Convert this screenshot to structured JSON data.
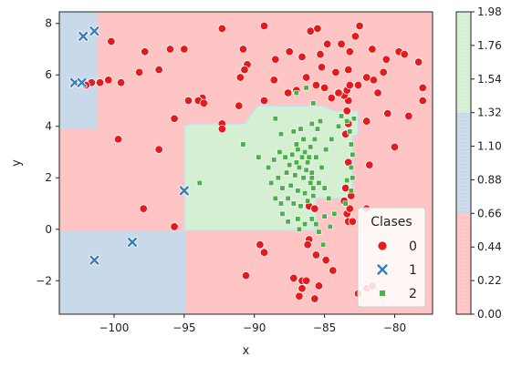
{
  "chart_data": {
    "type": "scatter",
    "title": "",
    "xlabel": "x",
    "ylabel": "y",
    "xlim": [
      -103.9,
      -77.3
    ],
    "ylim": [
      -3.3,
      8.45
    ],
    "xticks": [
      -100,
      -95,
      -90,
      -85,
      -80
    ],
    "yticks": [
      -2,
      0,
      2,
      4,
      6,
      8
    ],
    "tick_labels_x": [
      "−100",
      "−95",
      "−90",
      "−85",
      "−80"
    ],
    "tick_labels_y": [
      "−2",
      "0",
      "2",
      "4",
      "6",
      "8"
    ],
    "grid": false,
    "legend": {
      "title": "Clases",
      "placement": "lower-right",
      "entries": [
        {
          "label": "0",
          "marker": "circle",
          "color": "#e41a1c"
        },
        {
          "label": "1",
          "marker": "x",
          "color": "#377eb8"
        },
        {
          "label": "2",
          "marker": "square",
          "color": "#4daf4a"
        }
      ]
    },
    "decision_regions": {
      "colors": {
        "0": "#ffc4c4",
        "1": "#c8d9ea",
        "2": "#d5efd3"
      },
      "class_1": [
        {
          "x0": -103.9,
          "x1": -101.2,
          "y0": 3.9,
          "y1": 8.45
        },
        {
          "x0": -103.9,
          "x1": -94.9,
          "y0": -3.3,
          "y1": -0.05
        }
      ],
      "class_2_polygon": [
        [
          -95.0,
          -0.05
        ],
        [
          -95.0,
          4.0
        ],
        [
          -94.6,
          4.1
        ],
        [
          -90.7,
          4.1
        ],
        [
          -89.8,
          4.8
        ],
        [
          -85.2,
          4.8
        ],
        [
          -84.3,
          4.6
        ],
        [
          -82.6,
          4.6
        ],
        [
          -82.6,
          3.7
        ],
        [
          -83.0,
          3.6
        ],
        [
          -83.0,
          1.2
        ],
        [
          -85.6,
          1.2
        ],
        [
          -85.6,
          -0.05
        ]
      ]
    },
    "colorbar": {
      "ticks": [
        0.0,
        0.22,
        0.44,
        0.66,
        0.88,
        1.1,
        1.32,
        1.54,
        1.76,
        1.98
      ],
      "tick_labels": [
        "0.00",
        "0.22",
        "0.44",
        "0.66",
        "0.88",
        "1.10",
        "1.32",
        "1.54",
        "1.76",
        "1.98"
      ],
      "range": [
        0.0,
        1.98
      ],
      "bands": [
        {
          "from": 0.0,
          "to": 0.66,
          "color": "#ffc4c4"
        },
        {
          "from": 0.66,
          "to": 1.32,
          "color": "#c8d9ea"
        },
        {
          "from": 1.32,
          "to": 1.98,
          "color": "#d5efd3"
        }
      ]
    },
    "series": [
      {
        "name": "0",
        "marker": "circle",
        "color": "#e41a1c",
        "points": [
          [
            -100.2,
            7.3
          ],
          [
            -97.8,
            6.9
          ],
          [
            -96.8,
            6.2
          ],
          [
            -96.0,
            7.0
          ],
          [
            -95.0,
            7.0
          ],
          [
            -92.3,
            7.8
          ],
          [
            -90.8,
            7.0
          ],
          [
            -89.3,
            7.9
          ],
          [
            -88.5,
            6.6
          ],
          [
            -87.5,
            6.9
          ],
          [
            -86.6,
            6.7
          ],
          [
            -86.0,
            7.7
          ],
          [
            -85.5,
            7.8
          ],
          [
            -85.3,
            6.8
          ],
          [
            -84.8,
            7.2
          ],
          [
            -83.8,
            7.2
          ],
          [
            -83.2,
            6.9
          ],
          [
            -82.8,
            7.5
          ],
          [
            -82.5,
            7.9
          ],
          [
            -81.6,
            7.0
          ],
          [
            -80.6,
            6.6
          ],
          [
            -79.7,
            6.9
          ],
          [
            -79.3,
            6.8
          ],
          [
            -78.3,
            6.5
          ],
          [
            -78.0,
            5.5
          ],
          [
            -78.0,
            5.0
          ],
          [
            -79.0,
            4.4
          ],
          [
            -80.0,
            3.2
          ],
          [
            -80.5,
            4.5
          ],
          [
            -81.2,
            5.3
          ],
          [
            -81.5,
            5.8
          ],
          [
            -80.8,
            6.1
          ],
          [
            -82.0,
            5.9
          ],
          [
            -82.6,
            5.6
          ],
          [
            -83.3,
            6.2
          ],
          [
            -84.2,
            6.1
          ],
          [
            -85.2,
            6.3
          ],
          [
            -85.0,
            5.5
          ],
          [
            -85.6,
            5.6
          ],
          [
            -86.3,
            5.9
          ],
          [
            -87.0,
            5.4
          ],
          [
            -87.6,
            5.3
          ],
          [
            -88.6,
            5.8
          ],
          [
            -89.3,
            5.0
          ],
          [
            -90.5,
            6.4
          ],
          [
            -90.7,
            6.2
          ],
          [
            -91.0,
            5.9
          ],
          [
            -91.1,
            4.8
          ],
          [
            -92.3,
            4.1
          ],
          [
            -92.3,
            3.9
          ],
          [
            -93.7,
            5.1
          ],
          [
            -94.0,
            5.0
          ],
          [
            -93.6,
            4.9
          ],
          [
            -94.7,
            5.0
          ],
          [
            -95.7,
            4.3
          ],
          [
            -98.2,
            6.1
          ],
          [
            -99.5,
            5.7
          ],
          [
            -100.4,
            5.8
          ],
          [
            -101.0,
            5.7
          ],
          [
            -101.6,
            5.7
          ],
          [
            -102.0,
            5.6
          ],
          [
            -99.7,
            3.5
          ],
          [
            -96.8,
            3.1
          ],
          [
            -97.9,
            0.8
          ],
          [
            -95.7,
            0.1
          ],
          [
            -89.6,
            -0.6
          ],
          [
            -89.3,
            -0.9
          ],
          [
            -90.6,
            -1.8
          ],
          [
            -87.2,
            -1.9
          ],
          [
            -86.6,
            -2.0
          ],
          [
            -86.6,
            -2.3
          ],
          [
            -86.3,
            -2.0
          ],
          [
            -85.7,
            -2.7
          ],
          [
            -85.4,
            -2.2
          ],
          [
            -86.8,
            -2.6
          ],
          [
            -84.4,
            -1.6
          ],
          [
            -84.9,
            -1.2
          ],
          [
            -85.6,
            -1.0
          ],
          [
            -86.1,
            -0.4
          ],
          [
            -86.2,
            -0.6
          ],
          [
            -86.1,
            0.9
          ],
          [
            -85.7,
            0.8
          ],
          [
            -83.3,
            0.3
          ],
          [
            -83.0,
            0.3
          ],
          [
            -83.4,
            0.6
          ],
          [
            -83.2,
            0.8
          ],
          [
            -83.6,
            1.1
          ],
          [
            -83.1,
            1.3
          ],
          [
            -83.5,
            1.6
          ],
          [
            -83.3,
            2.6
          ],
          [
            -83.5,
            3.7
          ],
          [
            -83.3,
            4.1
          ],
          [
            -83.4,
            4.6
          ],
          [
            -83.3,
            5.0
          ],
          [
            -83.6,
            5.2
          ],
          [
            -83.4,
            5.4
          ],
          [
            -83.2,
            5.6
          ],
          [
            -84.0,
            5.3
          ],
          [
            -84.5,
            5.1
          ],
          [
            -82.0,
            4.2
          ],
          [
            -81.8,
            2.5
          ],
          [
            -82.0,
            0.8
          ],
          [
            -82.6,
            -2.5
          ],
          [
            -82.0,
            -2.3
          ],
          [
            -81.6,
            -2.2
          ]
        ]
      },
      {
        "name": "1",
        "marker": "x",
        "color": "#377eb8",
        "points": [
          [
            -102.2,
            7.5
          ],
          [
            -101.4,
            7.7
          ],
          [
            -102.8,
            5.7
          ],
          [
            -102.3,
            5.7
          ],
          [
            -95.0,
            1.5
          ],
          [
            -98.7,
            -0.5
          ],
          [
            -101.4,
            -1.2
          ]
        ]
      },
      {
        "name": "2",
        "marker": "square",
        "color": "#4daf4a",
        "points": [
          [
            -93.9,
            1.8
          ],
          [
            -90.8,
            3.3
          ],
          [
            -88.5,
            4.3
          ],
          [
            -88.1,
            3.7
          ],
          [
            -87.2,
            3.8
          ],
          [
            -86.7,
            3.9
          ],
          [
            -85.9,
            4.1
          ],
          [
            -85.3,
            4.2
          ],
          [
            -85.5,
            3.9
          ],
          [
            -85.7,
            3.5
          ],
          [
            -86.0,
            3.2
          ],
          [
            -86.4,
            3.0
          ],
          [
            -86.9,
            3.1
          ],
          [
            -87.3,
            2.9
          ],
          [
            -87.8,
            2.8
          ],
          [
            -88.2,
            3.0
          ],
          [
            -88.6,
            2.7
          ],
          [
            -87.5,
            2.5
          ],
          [
            -86.8,
            2.4
          ],
          [
            -86.2,
            2.6
          ],
          [
            -85.6,
            2.8
          ],
          [
            -85.2,
            2.4
          ],
          [
            -85.9,
            2.2
          ],
          [
            -86.5,
            2.0
          ],
          [
            -87.1,
            2.1
          ],
          [
            -87.7,
            2.2
          ],
          [
            -88.3,
            2.0
          ],
          [
            -88.0,
            1.6
          ],
          [
            -87.4,
            1.7
          ],
          [
            -86.9,
            1.5
          ],
          [
            -86.4,
            1.4
          ],
          [
            -85.8,
            1.6
          ],
          [
            -85.4,
            1.8
          ],
          [
            -85.0,
            1.6
          ],
          [
            -86.2,
            1.1
          ],
          [
            -86.7,
            0.9
          ],
          [
            -87.2,
            1.0
          ],
          [
            -87.6,
            1.2
          ],
          [
            -88.1,
            1.0
          ],
          [
            -88.5,
            1.2
          ],
          [
            -88.0,
            0.6
          ],
          [
            -86.9,
            0.4
          ],
          [
            -86.4,
            0.2
          ],
          [
            -86.8,
            0.0
          ],
          [
            -85.9,
            0.4
          ],
          [
            -85.6,
            0.2
          ],
          [
            -84.6,
            0.1
          ],
          [
            -84.3,
            0.6
          ],
          [
            -83.5,
            1.0
          ],
          [
            -83.1,
            1.5
          ],
          [
            -83.0,
            2.0
          ],
          [
            -83.4,
            1.9
          ],
          [
            -83.1,
            2.4
          ],
          [
            -83.0,
            2.9
          ],
          [
            -83.1,
            3.3
          ],
          [
            -83.2,
            3.8
          ],
          [
            -82.9,
            4.3
          ],
          [
            -83.4,
            4.2
          ],
          [
            -84.0,
            4.0
          ],
          [
            -84.5,
            3.5
          ],
          [
            -84.9,
            3.1
          ],
          [
            -85.0,
            0.5
          ],
          [
            -85.4,
            -0.1
          ],
          [
            -85.1,
            -0.6
          ],
          [
            -89.7,
            2.8
          ],
          [
            -89.0,
            2.4
          ],
          [
            -88.8,
            1.8
          ],
          [
            -87.0,
            3.3
          ],
          [
            -86.5,
            3.5
          ],
          [
            -86.1,
            2.8
          ],
          [
            -86.6,
            2.8
          ],
          [
            -87.0,
            2.6
          ],
          [
            -86.3,
            2.3
          ],
          [
            -85.9,
            2.0
          ],
          [
            -86.0,
            1.8
          ],
          [
            -85.8,
            1.3
          ],
          [
            -83.8,
            4.4
          ],
          [
            -85.8,
            4.9
          ],
          [
            -87.0,
            5.3
          ],
          [
            -86.3,
            5.5
          ],
          [
            -84.7,
            1.2
          ],
          [
            -87.6,
            0.3
          ]
        ]
      }
    ]
  }
}
